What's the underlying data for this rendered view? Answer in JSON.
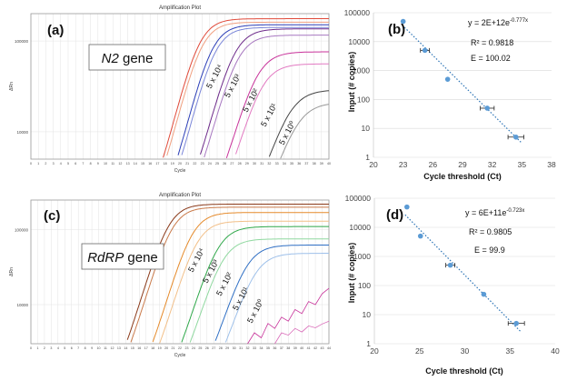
{
  "chart_data": [
    {
      "panel": "(a)",
      "type": "line",
      "title": "Amplification Plot",
      "xlabel": "Cycle",
      "ylabel": "ΔRn",
      "gene_label": {
        "italic": "N2",
        "rest": " gene"
      },
      "y_scale": "log",
      "ylim": [
        5000,
        200000
      ],
      "xlim": [
        0,
        40
      ],
      "x_ticks": [
        0,
        1,
        2,
        3,
        4,
        5,
        6,
        7,
        8,
        9,
        10,
        11,
        12,
        13,
        14,
        15,
        16,
        17,
        18,
        19,
        20,
        21,
        22,
        23,
        24,
        25,
        26,
        27,
        28,
        29,
        30,
        31,
        32,
        33,
        34,
        35,
        36,
        37,
        38,
        39,
        40
      ],
      "y_ticks": [
        {
          "value": 100000,
          "label": "100000"
        },
        {
          "value": 10000,
          "label": "10000"
        }
      ],
      "series": [
        {
          "label": "5 x 10⁴",
          "ct": 22.5,
          "plateau": 175000,
          "slope": 0.78,
          "color": "#e04a3a"
        },
        {
          "label": "5 x 10⁴",
          "ct": 22.8,
          "plateau": 160000,
          "slope": 0.78,
          "color": "#f0a080"
        },
        {
          "label": "5 x 10³",
          "ct": 24.2,
          "plateau": 150000,
          "slope": 0.78,
          "color": "#2c3fb8"
        },
        {
          "label": "5 x 10³",
          "ct": 24.6,
          "plateau": 140000,
          "slope": 0.78,
          "color": "#7a86d8"
        },
        {
          "label": "5 x 10²",
          "ct": 27.2,
          "plateau": 135000,
          "slope": 0.75,
          "color": "#6d2a8a"
        },
        {
          "label": "5 x 10²",
          "ct": 27.6,
          "plateau": 115000,
          "slope": 0.75,
          "color": "#a777c0"
        },
        {
          "label": "5 x 10¹",
          "ct": 30.2,
          "plateau": 75000,
          "slope": 0.72,
          "color": "#c8329a"
        },
        {
          "label": "5 x 10¹",
          "ct": 30.8,
          "plateau": 55000,
          "slope": 0.72,
          "color": "#e27ac2"
        },
        {
          "label": "5 x 10⁰",
          "ct": 34.5,
          "plateau": 28000,
          "slope": 0.68,
          "color": "#444444"
        },
        {
          "label": "5 x 10⁰",
          "ct": 35.5,
          "plateau": 20000,
          "slope": 0.68,
          "color": "#999999"
        }
      ],
      "dilution_labels": [
        "5 x 10⁴",
        "5 x 10³",
        "5 x 10²",
        "5 x 10¹",
        "5 x 10⁰"
      ]
    },
    {
      "panel": "(b)",
      "type": "scatter",
      "xlabel": "Cycle threshold (Ct)",
      "ylabel": "Input (# copies)",
      "xlim": [
        20,
        38
      ],
      "ylim": [
        1,
        100000
      ],
      "y_scale": "log",
      "x_ticks": [
        20,
        23,
        26,
        29,
        32,
        35,
        38
      ],
      "y_ticks": [
        {
          "value": 1,
          "label": "1"
        },
        {
          "value": 10,
          "label": "10"
        },
        {
          "value": 100,
          "label": "100"
        },
        {
          "value": 1000,
          "label": "1000"
        },
        {
          "value": 10000,
          "label": "10000"
        },
        {
          "value": 100000,
          "label": "100000"
        }
      ],
      "points": [
        {
          "x": 23.0,
          "y": 50000,
          "xerr": 0.0
        },
        {
          "x": 25.2,
          "y": 5000,
          "xerr": 0.45
        },
        {
          "x": 27.5,
          "y": 500,
          "xerr": 0.0
        },
        {
          "x": 31.5,
          "y": 50,
          "xerr": 0.7
        },
        {
          "x": 34.4,
          "y": 5,
          "xerr": 0.8
        }
      ],
      "trendline": {
        "x_start": 22.9,
        "x_end": 34.9,
        "a": 2000000000000.0,
        "b": -0.777
      },
      "equation": {
        "lead": "y = 2E+12e",
        "exponent": "-0.777x"
      },
      "r2": "R² = 0.9818",
      "efficiency": "E = 100.02",
      "colors": {
        "points": "#5b9bd5",
        "trend": "#2e75b6"
      }
    },
    {
      "panel": "(c)",
      "type": "line",
      "title": "Amplification Plot",
      "xlabel": "Cycle",
      "ylabel": "ΔRn",
      "gene_label": {
        "italic": "RdRP",
        "rest": " gene"
      },
      "y_scale": "log",
      "ylim": [
        3000,
        250000
      ],
      "xlim": [
        0,
        44
      ],
      "x_ticks": [
        0,
        1,
        2,
        3,
        4,
        5,
        6,
        7,
        8,
        9,
        10,
        11,
        12,
        13,
        14,
        15,
        16,
        17,
        18,
        19,
        20,
        21,
        22,
        23,
        24,
        25,
        26,
        27,
        28,
        29,
        30,
        31,
        32,
        33,
        34,
        35,
        36,
        37,
        38,
        39,
        40,
        41,
        42,
        43,
        44
      ],
      "y_ticks": [
        {
          "value": 100000,
          "label": "100000"
        },
        {
          "value": 10000,
          "label": "10000"
        }
      ],
      "series": [
        {
          "label": "5 x 10⁴",
          "ct": 20.3,
          "plateau": 220000,
          "slope": 0.72,
          "color": "#8b3a1a"
        },
        {
          "label": "5 x 10⁴",
          "ct": 20.8,
          "plateau": 200000,
          "slope": 0.72,
          "color": "#c97a4a"
        },
        {
          "label": "5 x 10³",
          "ct": 23.8,
          "plateau": 170000,
          "slope": 0.72,
          "color": "#e58a2a"
        },
        {
          "label": "5 x 10³",
          "ct": 24.5,
          "plateau": 130000,
          "slope": 0.72,
          "color": "#f2bf88"
        },
        {
          "label": "5 x 10²",
          "ct": 27.6,
          "plateau": 110000,
          "slope": 0.7,
          "color": "#2fa84a"
        },
        {
          "label": "5 x 10²",
          "ct": 28.3,
          "plateau": 75000,
          "slope": 0.7,
          "color": "#8fd89f"
        },
        {
          "label": "5 x 10¹",
          "ct": 31.8,
          "plateau": 62000,
          "slope": 0.68,
          "color": "#2f6fc4"
        },
        {
          "label": "5 x 10¹",
          "ct": 33.0,
          "plateau": 48000,
          "slope": 0.68,
          "color": "#9ec0ea"
        }
      ],
      "noise_series": [
        {
          "color": "#c8329a",
          "x": [
            32,
            33,
            34,
            35,
            36,
            37,
            38,
            39,
            40,
            41,
            42,
            43,
            44
          ],
          "y": [
            3000,
            4200,
            3600,
            5600,
            4800,
            6800,
            6000,
            8600,
            7600,
            11000,
            10000,
            14000,
            16500
          ]
        },
        {
          "color": "#d96ab8",
          "x": [
            36,
            37,
            38,
            39,
            40,
            41,
            42,
            43,
            44
          ],
          "y": [
            3000,
            4200,
            3900,
            4800,
            4300,
            5200,
            4900,
            5500,
            6000
          ]
        }
      ],
      "dilution_labels": [
        "5 x 10⁴",
        "5 x 10³",
        "5 x 10²",
        "5 x 10¹",
        "5 x 10⁰"
      ]
    },
    {
      "panel": "(d)",
      "type": "scatter",
      "xlabel": "Cycle threshold (Ct)",
      "ylabel": "Input (# copies)",
      "xlim": [
        20,
        40
      ],
      "ylim": [
        1,
        100000
      ],
      "y_scale": "log",
      "x_ticks": [
        20,
        25,
        30,
        35,
        40
      ],
      "y_ticks": [
        {
          "value": 1,
          "label": "1"
        },
        {
          "value": 10,
          "label": "10"
        },
        {
          "value": 100,
          "label": "100"
        },
        {
          "value": 1000,
          "label": "1000"
        },
        {
          "value": 10000,
          "label": "10000"
        },
        {
          "value": 100000,
          "label": "100000"
        }
      ],
      "points": [
        {
          "x": 23.6,
          "y": 50000,
          "xerr": 0.0
        },
        {
          "x": 25.1,
          "y": 5000,
          "xerr": 0.0
        },
        {
          "x": 28.4,
          "y": 500,
          "xerr": 0.5
        },
        {
          "x": 32.1,
          "y": 50,
          "xerr": 0.0
        },
        {
          "x": 35.7,
          "y": 5,
          "xerr": 0.9
        }
      ],
      "trendline": {
        "x_start": 23.4,
        "x_end": 36.2,
        "a": 600000000000.0,
        "b": -0.723
      },
      "equation": {
        "lead": "y = 6E+11e",
        "exponent": "-0.723x"
      },
      "r2": "R² = 0.9805",
      "efficiency": "E = 99.9",
      "colors": {
        "points": "#5b9bd5",
        "trend": "#2e75b6"
      }
    }
  ]
}
